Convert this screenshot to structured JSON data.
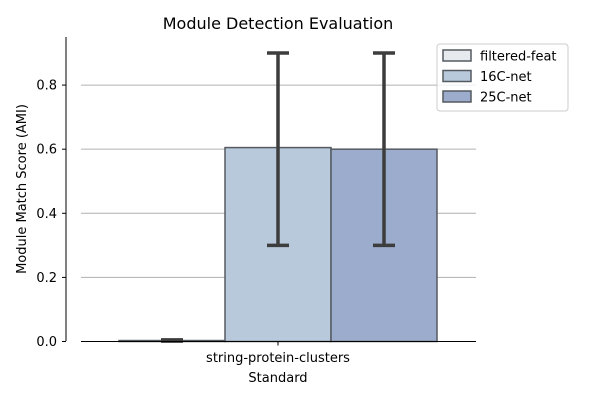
{
  "chart_data": {
    "type": "bar",
    "title": "Module Detection Evaluation",
    "xlabel": "Standard",
    "ylabel": "Module Match Score (AMI)",
    "categories": [
      "string-protein-clusters"
    ],
    "ylim": [
      0,
      0.95
    ],
    "yticks": [
      "0.0",
      "0.2",
      "0.4",
      "0.6",
      "0.8"
    ],
    "grid": "horizontal",
    "legend_position": "top-right",
    "series": [
      {
        "name": "filtered-feat",
        "color": "#e6eaef",
        "values": [
          0.003
        ],
        "error": [
          [
            0.001,
            0.005
          ]
        ]
      },
      {
        "name": "16C-net",
        "color": "#b8c9db",
        "values": [
          0.605
        ],
        "error": [
          [
            0.3,
            0.9
          ]
        ]
      },
      {
        "name": "25C-net",
        "color": "#9baccc",
        "values": [
          0.6
        ],
        "error": [
          [
            0.3,
            0.9
          ]
        ]
      }
    ]
  }
}
